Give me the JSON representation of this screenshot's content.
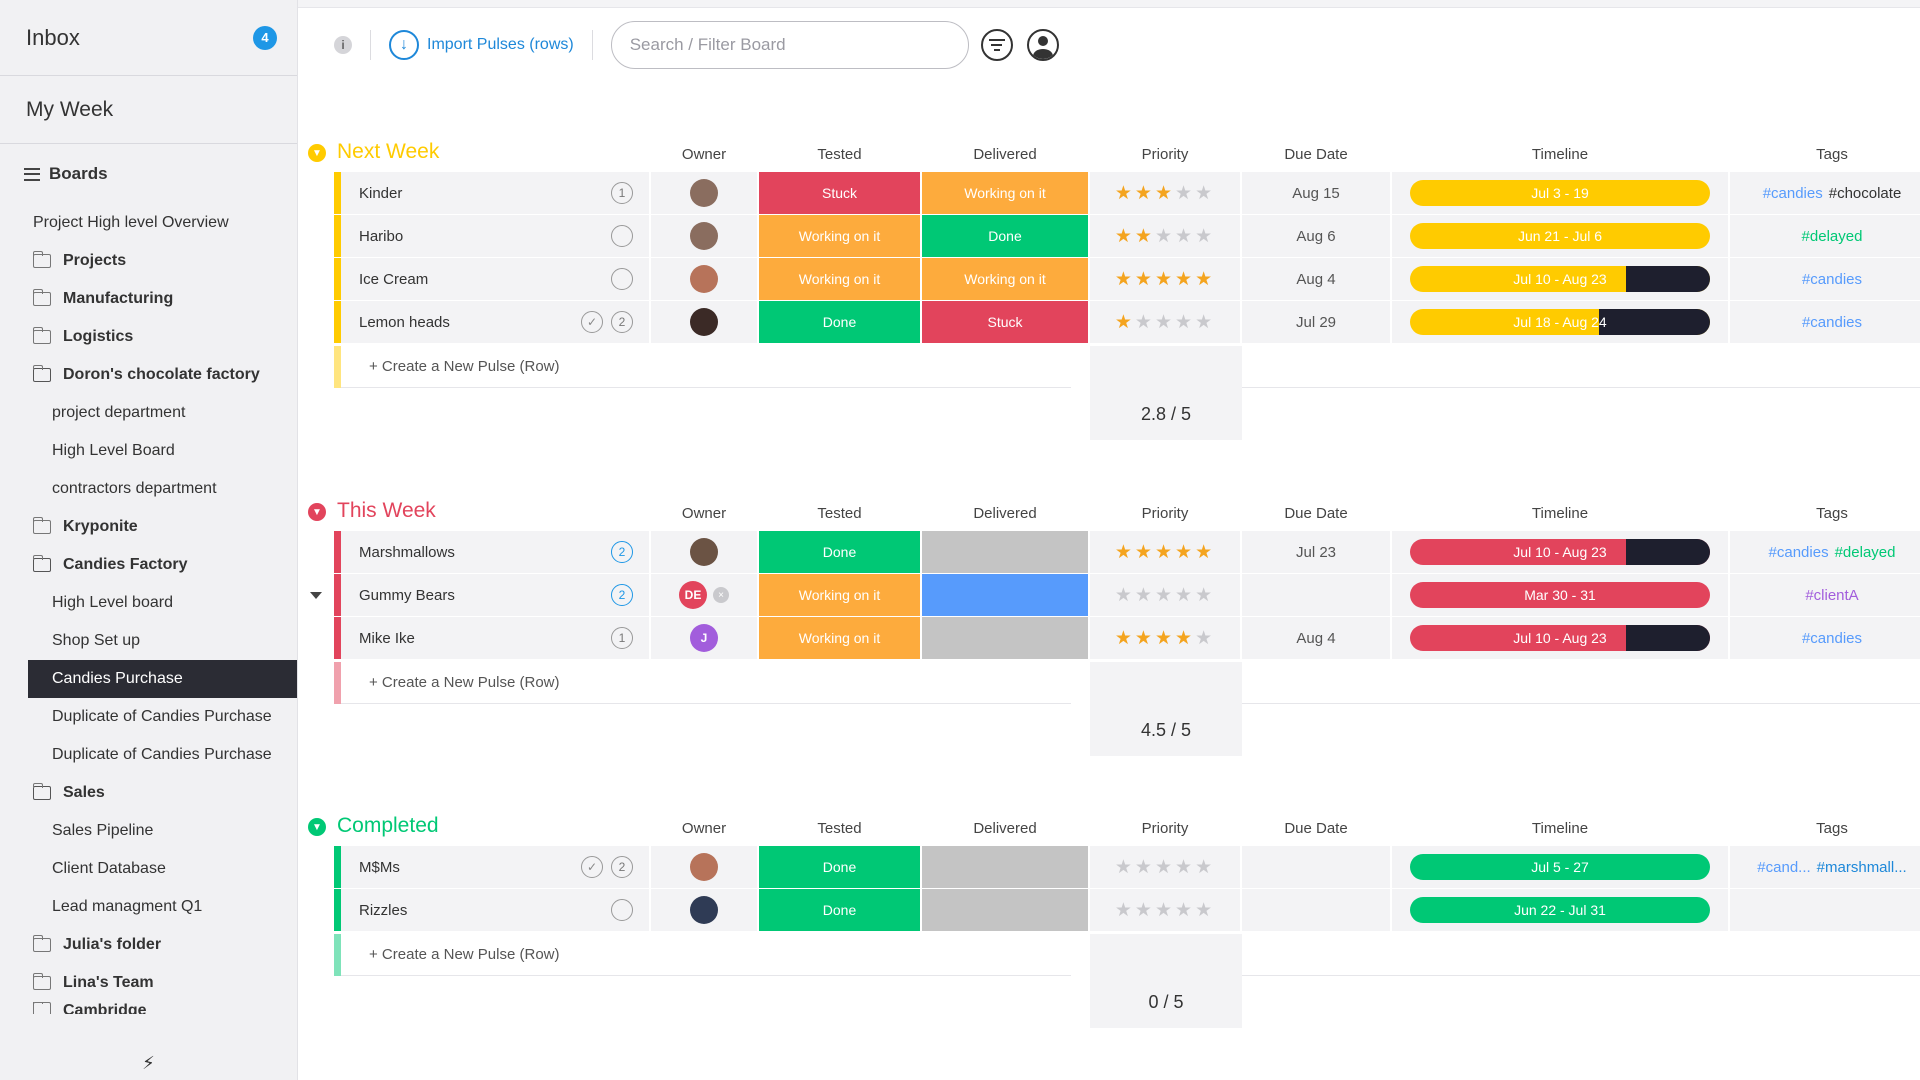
{
  "sidebar": {
    "inbox_label": "Inbox",
    "inbox_count": "4",
    "my_week_label": "My Week",
    "boards_label": "Boards",
    "items": [
      {
        "label": "Project High level Overview",
        "kind": "plain"
      },
      {
        "label": "Projects",
        "kind": "folder"
      },
      {
        "label": "Manufacturing",
        "kind": "folder"
      },
      {
        "label": "Logistics",
        "kind": "folder"
      },
      {
        "label": "Doron's chocolate factory",
        "kind": "folder-open"
      },
      {
        "label": "project department",
        "kind": "sub"
      },
      {
        "label": "High Level Board",
        "kind": "sub"
      },
      {
        "label": "contractors department",
        "kind": "sub"
      },
      {
        "label": "Kryponite",
        "kind": "folder"
      },
      {
        "label": "Candies Factory",
        "kind": "folder-open"
      },
      {
        "label": "High Level board",
        "kind": "sub"
      },
      {
        "label": "Shop Set up",
        "kind": "sub"
      },
      {
        "label": "Candies Purchase",
        "kind": "active"
      },
      {
        "label": "Duplicate of Candies Purchase",
        "kind": "sub"
      },
      {
        "label": "Duplicate of Candies Purchase",
        "kind": "sub"
      },
      {
        "label": "Sales",
        "kind": "folder-open"
      },
      {
        "label": "Sales Pipeline",
        "kind": "sub"
      },
      {
        "label": "Client Database",
        "kind": "sub"
      },
      {
        "label": "Lead managment Q1",
        "kind": "sub"
      },
      {
        "label": "Julia's folder",
        "kind": "folder"
      },
      {
        "label": "Lina's Team",
        "kind": "folder"
      },
      {
        "label": "Cambridge",
        "kind": "folder"
      }
    ]
  },
  "toolbar": {
    "info_label": "i",
    "import_label": "Import Pulses (rows)",
    "search_placeholder": "Search / Filter Board"
  },
  "columns": {
    "owner": "Owner",
    "tested": "Tested",
    "delivered": "Delivered",
    "priority": "Priority",
    "due_date": "Due Date",
    "timeline": "Timeline",
    "tags": "Tags"
  },
  "create_row_label": "+ Create a New Pulse (Row)",
  "colors": {
    "stuck": "#e2445c",
    "working": "#fdab3d",
    "done": "#00c875",
    "empty": "#c4c4c4",
    "blue": "#579bfc",
    "next_week": "#ffcb00",
    "this_week": "#e2445c",
    "completed": "#00c875"
  },
  "groups": [
    {
      "title": "Next Week",
      "color": "#ffcb00",
      "summary": "2.8 / 5",
      "rows": [
        {
          "name": "Kinder",
          "count": "1",
          "check": false,
          "owner": {
            "initials": "",
            "color": "#8a6d5f"
          },
          "tested": {
            "label": "Stuck",
            "color": "#e2445c"
          },
          "delivered": {
            "label": "Working on it",
            "color": "#fdab3d"
          },
          "priority": 3,
          "due": "Aug 15",
          "timeline": {
            "label": "Jul 3 - 19",
            "color": "#ffcb00",
            "progress": 1.0
          },
          "tags": [
            {
              "text": "#candies",
              "color": "#579bfc"
            },
            {
              "text": "#chocolate",
              "color": "#333333"
            }
          ]
        },
        {
          "name": "Haribo",
          "count": "",
          "check": false,
          "owner": {
            "initials": "",
            "color": "#8a6d5f"
          },
          "tested": {
            "label": "Working on it",
            "color": "#fdab3d"
          },
          "delivered": {
            "label": "Done",
            "color": "#00c875"
          },
          "priority": 2,
          "due": "Aug 6",
          "timeline": {
            "label": "Jun 21 - Jul 6",
            "color": "#ffcb00",
            "progress": 1.0
          },
          "tags": [
            {
              "text": "#delayed",
              "color": "#00c875"
            }
          ]
        },
        {
          "name": "Ice Cream",
          "count": "",
          "check": false,
          "owner": {
            "initials": "",
            "color": "#b7735a"
          },
          "tested": {
            "label": "Working on it",
            "color": "#fdab3d"
          },
          "delivered": {
            "label": "Working on it",
            "color": "#fdab3d"
          },
          "priority": 5,
          "due": "Aug 4",
          "timeline": {
            "label": "Jul 10 - Aug 23",
            "color": "#ffcb00",
            "progress": 0.72
          },
          "tags": [
            {
              "text": "#candies",
              "color": "#579bfc"
            }
          ]
        },
        {
          "name": "Lemon heads",
          "count": "2",
          "check": true,
          "owner": {
            "initials": "",
            "color": "#3b2a26"
          },
          "tested": {
            "label": "Done",
            "color": "#00c875"
          },
          "delivered": {
            "label": "Stuck",
            "color": "#e2445c"
          },
          "priority": 1,
          "due": "Jul 29",
          "timeline": {
            "label": "Jul 18 - Aug 24",
            "color": "#ffcb00",
            "progress": 0.63
          },
          "tags": [
            {
              "text": "#candies",
              "color": "#579bfc"
            }
          ]
        }
      ]
    },
    {
      "title": "This Week",
      "color": "#e2445c",
      "summary": "4.5 / 5",
      "rows": [
        {
          "name": "Marshmallows",
          "count": "2",
          "check": false,
          "owner": {
            "initials": "",
            "color": "#6b5344"
          },
          "tested": {
            "label": "Done",
            "color": "#00c875"
          },
          "delivered": {
            "label": "",
            "color": "#c4c4c4"
          },
          "priority": 5,
          "due": "Jul 23",
          "timeline": {
            "label": "Jul 10 - Aug 23",
            "color": "#e2445c",
            "progress": 0.72
          },
          "tags": [
            {
              "text": "#candies",
              "color": "#579bfc"
            },
            {
              "text": "#delayed",
              "color": "#00c875"
            }
          ]
        },
        {
          "name": "Gummy Bears",
          "count": "2",
          "check": false,
          "owner": {
            "initials": "DE",
            "color": "#e2445c"
          },
          "tested": {
            "label": "Working on it",
            "color": "#fdab3d"
          },
          "delivered": {
            "label": "",
            "color": "#579bfc"
          },
          "priority": 0,
          "due": "",
          "timeline": {
            "label": "Mar 30 - 31",
            "color": "#e2445c",
            "progress": 1.0
          },
          "tags": [
            {
              "text": "#clientA",
              "color": "#a25ddc"
            }
          ]
        },
        {
          "name": "Mike Ike",
          "count": "1",
          "check": false,
          "owner": {
            "initials": "J",
            "color": "#a25ddc"
          },
          "tested": {
            "label": "Working on it",
            "color": "#fdab3d"
          },
          "delivered": {
            "label": "",
            "color": "#c4c4c4"
          },
          "priority": 4,
          "due": "Aug 4",
          "timeline": {
            "label": "Jul 10 - Aug 23",
            "color": "#e2445c",
            "progress": 0.72
          },
          "tags": [
            {
              "text": "#candies",
              "color": "#579bfc"
            }
          ]
        }
      ]
    },
    {
      "title": "Completed",
      "color": "#00c875",
      "summary": "0 / 5",
      "rows": [
        {
          "name": "M$Ms",
          "count": "2",
          "check": true,
          "owner": {
            "initials": "",
            "color": "#b7735a"
          },
          "tested": {
            "label": "Done",
            "color": "#00c875"
          },
          "delivered": {
            "label": "",
            "color": "#c4c4c4"
          },
          "priority": 0,
          "due": "",
          "timeline": {
            "label": "Jul 5 - 27",
            "color": "#00c875",
            "progress": 1.0
          },
          "tags": [
            {
              "text": "#cand...",
              "color": "#579bfc"
            },
            {
              "text": "#marshmall...",
              "color": "#1e88d9"
            }
          ]
        },
        {
          "name": "Rizzles",
          "count": "",
          "check": false,
          "owner": {
            "initials": "",
            "color": "#2f3b55"
          },
          "tested": {
            "label": "Done",
            "color": "#00c875"
          },
          "delivered": {
            "label": "",
            "color": "#c4c4c4"
          },
          "priority": 0,
          "due": "",
          "timeline": {
            "label": "Jun 22 - Jul 31",
            "color": "#00c875",
            "progress": 1.0
          },
          "tags": []
        }
      ]
    }
  ]
}
